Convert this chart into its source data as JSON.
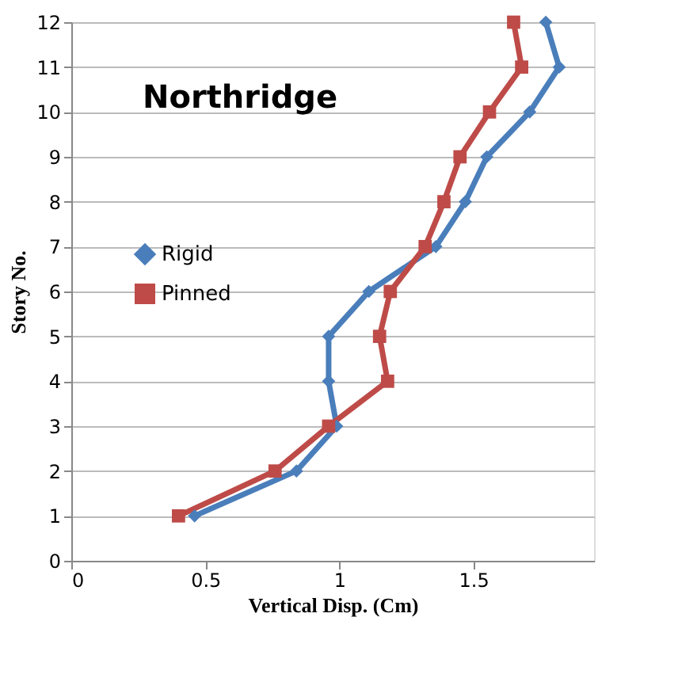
{
  "chart_data": {
    "type": "line",
    "xlabel": "Vertical Disp. (Cm)",
    "ylabel": "Story No.",
    "annotations": [
      "Northridge"
    ],
    "series": [
      {
        "name": "Rigid",
        "color": "#4a7ebb",
        "marker": "diamond",
        "x": [
          0.46,
          0.84,
          0.99,
          0.96,
          0.96,
          1.11,
          1.36,
          1.47,
          1.55,
          1.71,
          1.82,
          1.77
        ],
        "values": [
          1,
          2,
          3,
          4,
          5,
          6,
          7,
          8,
          9,
          10,
          11,
          12
        ]
      },
      {
        "name": "Pinned",
        "color": "#be4b48",
        "marker": "square",
        "x": [
          0.4,
          0.76,
          0.96,
          1.18,
          1.15,
          1.19,
          1.32,
          1.39,
          1.45,
          1.56,
          1.68,
          1.65
        ],
        "values": [
          1,
          2,
          3,
          4,
          5,
          6,
          7,
          8,
          9,
          10,
          11,
          12
        ]
      }
    ],
    "xlim": [
      0,
      1.95
    ],
    "xticks": [
      0,
      0.5,
      1,
      1.5
    ],
    "ylim": [
      0,
      12
    ],
    "yticks": [
      0,
      1,
      2,
      3,
      4,
      5,
      6,
      7,
      8,
      9,
      10,
      11,
      12
    ],
    "grid": "y",
    "legend": "left",
    "line_style": "solid"
  }
}
